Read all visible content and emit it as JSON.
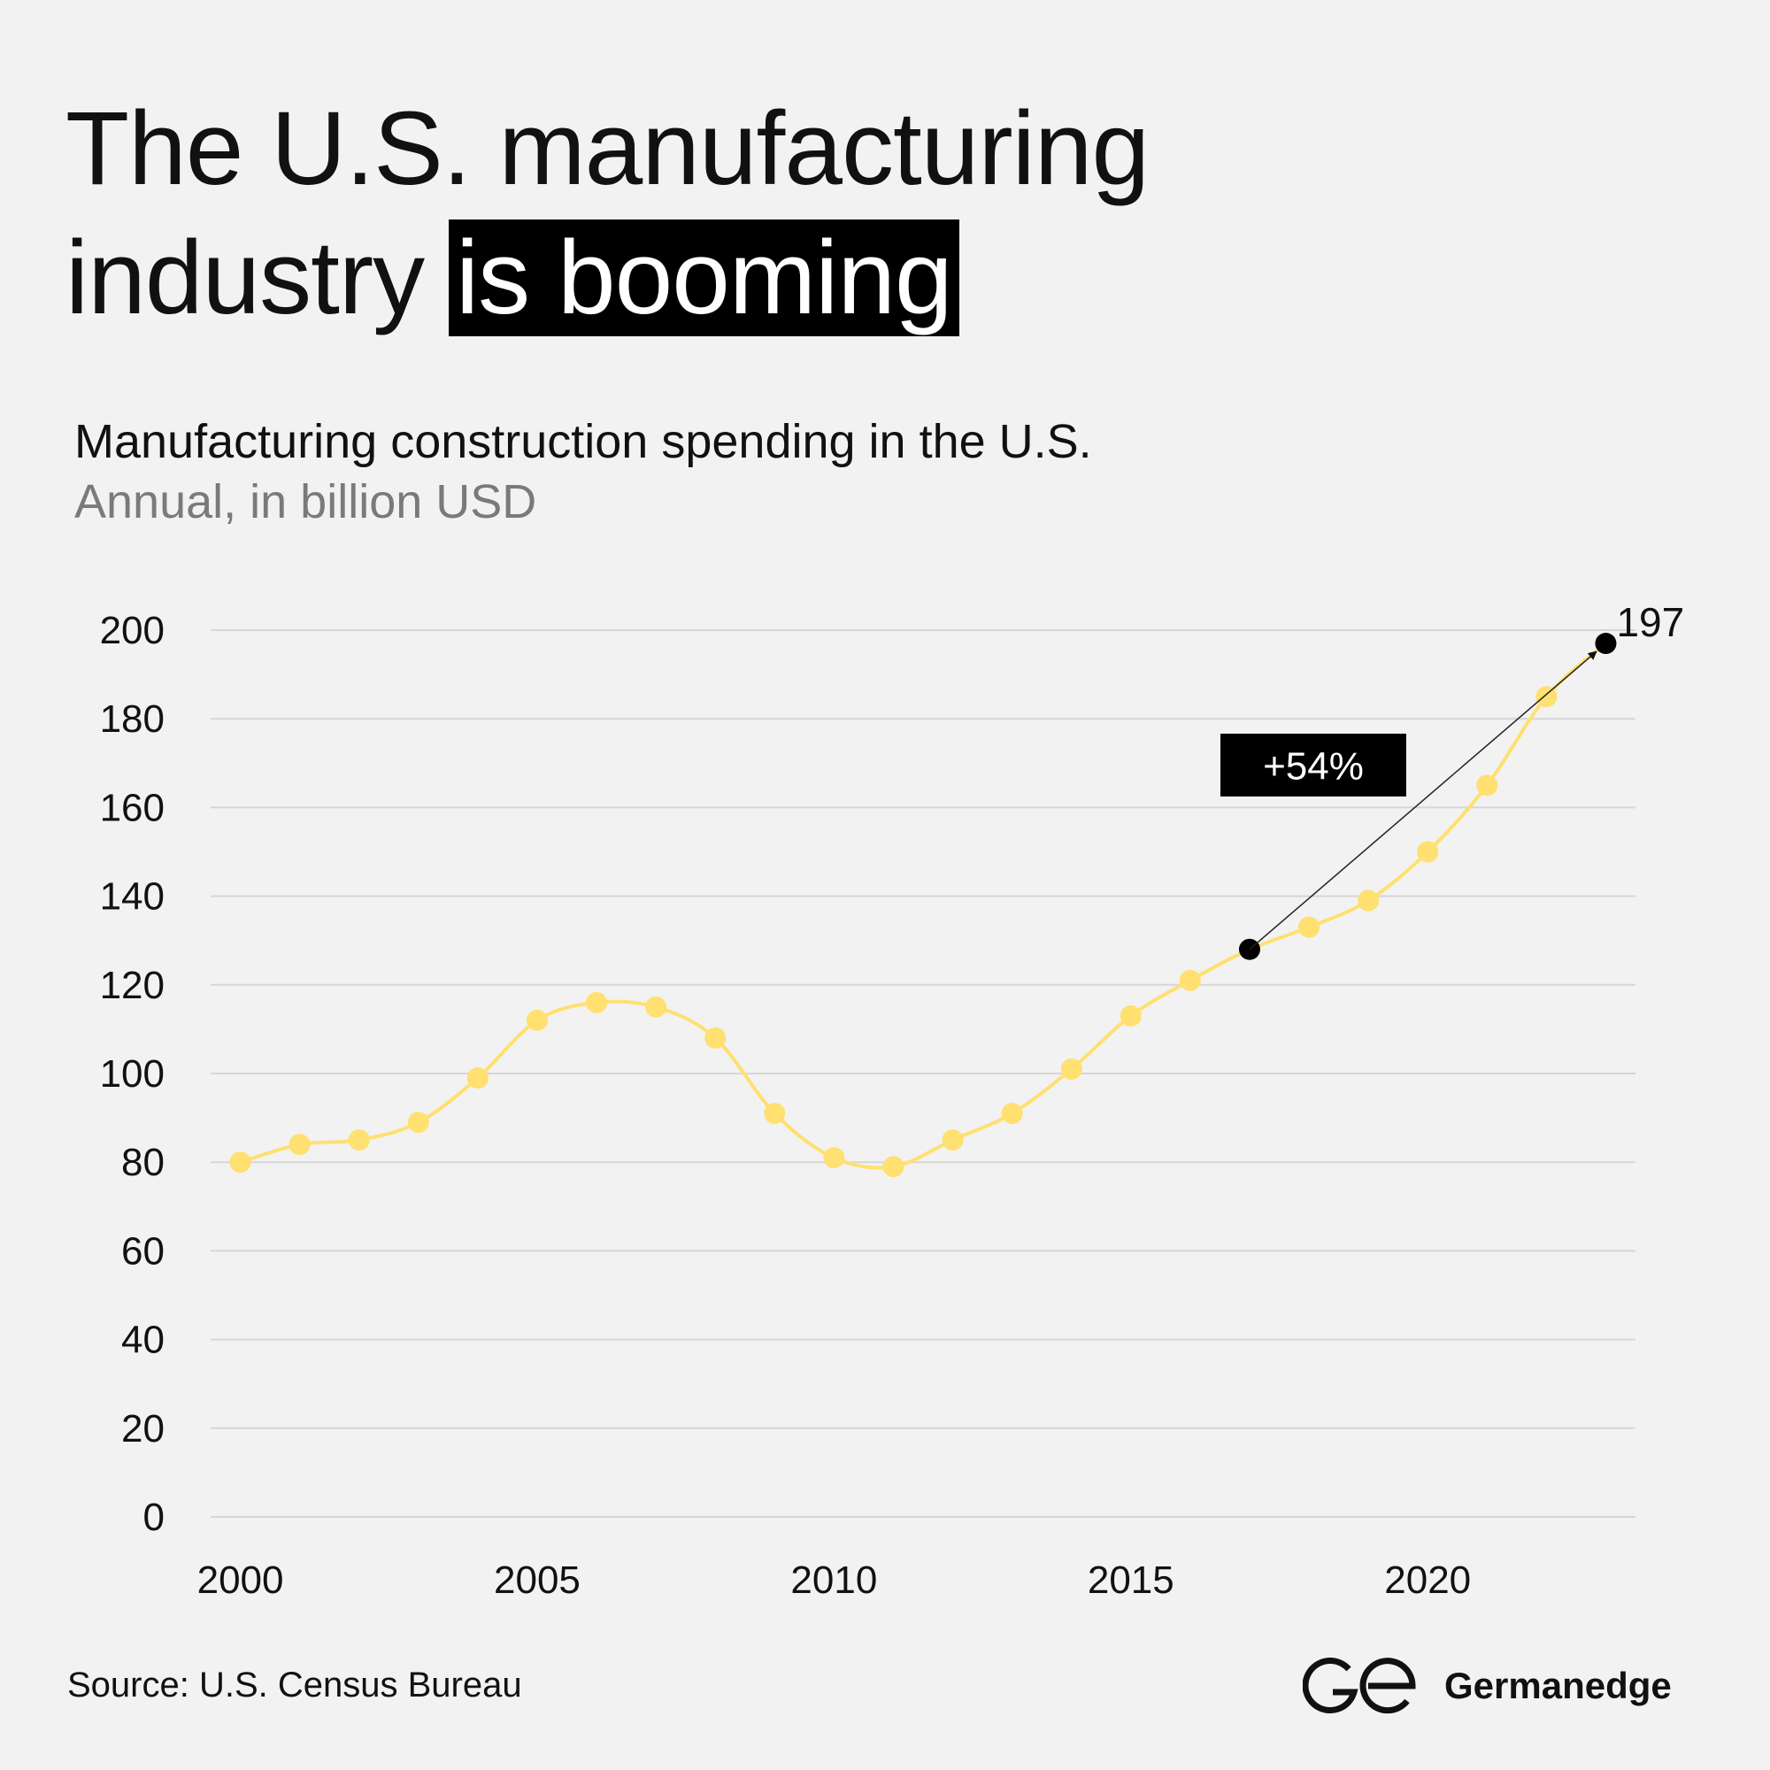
{
  "header": {
    "title_part1": "The U.S. manufacturing",
    "title_part2": "industry ",
    "title_highlight": "is booming"
  },
  "chart_data": {
    "type": "line",
    "title": "Manufacturing construction spending in the U.S.",
    "subtitle": "Annual, in billion USD",
    "xlabel": "",
    "ylabel": "",
    "x": [
      2000,
      2001,
      2002,
      2003,
      2004,
      2005,
      2006,
      2007,
      2008,
      2009,
      2010,
      2011,
      2012,
      2013,
      2014,
      2015,
      2016,
      2017,
      2018,
      2019,
      2020,
      2021,
      2022,
      2023
    ],
    "series": [
      {
        "values": [
          80,
          84,
          85,
          89,
          99,
          112,
          116,
          115,
          108,
          91,
          81,
          79,
          85,
          91,
          101,
          113,
          121,
          128,
          133,
          139,
          150,
          165,
          185,
          197
        ],
        "color": "#ffe070"
      }
    ],
    "xlim": [
      1999.5,
      2023.5
    ],
    "ylim": [
      0,
      200
    ],
    "x_ticks": [
      2000,
      2005,
      2010,
      2015,
      2020
    ],
    "y_ticks": [
      0,
      20,
      40,
      60,
      80,
      100,
      120,
      140,
      160,
      180,
      200
    ],
    "grid": true,
    "annotations": [
      {
        "type": "arrow",
        "from_x": 2017,
        "from_y": 128,
        "to_x": 2023,
        "to_y": 197,
        "label": "+54%"
      },
      {
        "type": "end_label",
        "x": 2023,
        "y": 197,
        "label": "197"
      }
    ],
    "highlight_color": "#000000"
  },
  "footer": {
    "source": "Source: U.S. Census Bureau",
    "brand": "Germanedge",
    "brand_logo_icon": "ge-logo-icon"
  }
}
